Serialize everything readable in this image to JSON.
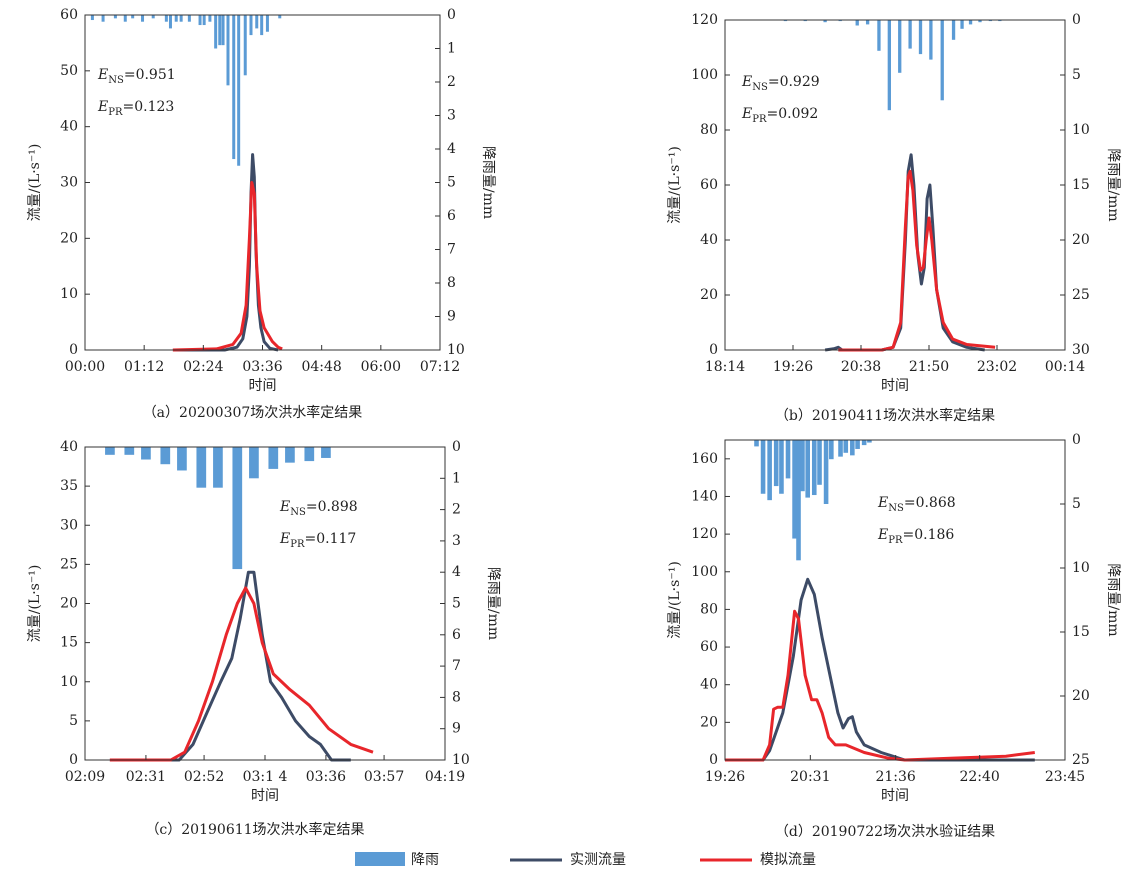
{
  "chart_data": [
    {
      "type": "bar-line",
      "caption": "（a）20200307场次洪水率定结果",
      "x_label": "时间",
      "y_label": "流量/(L·s⁻¹)",
      "y2_label": "降雨量/mm",
      "xlim": [
        0,
        432
      ],
      "xticks": [
        {
          "value": 0,
          "label": "00:00"
        },
        {
          "value": 72,
          "label": "01:12"
        },
        {
          "value": 144,
          "label": "02:24"
        },
        {
          "value": 216,
          "label": "03:36"
        },
        {
          "value": 288,
          "label": "04:48"
        },
        {
          "value": 360,
          "label": "06:00"
        },
        {
          "value": 432,
          "label": "07:12"
        }
      ],
      "ylim": [
        0,
        60
      ],
      "yticks": [
        0,
        10,
        20,
        30,
        40,
        50,
        60
      ],
      "y2lim": [
        0,
        10
      ],
      "y2ticks": [
        0,
        1,
        2,
        3,
        4,
        5,
        6,
        7,
        8,
        9,
        10
      ],
      "y2_inverted": true,
      "annotations": [
        {
          "symbol": "E",
          "sub": "NS",
          "text": "=0.951"
        },
        {
          "symbol": "E",
          "sub": "PR",
          "text": "=0.123"
        }
      ],
      "series": [
        {
          "name": "降雨",
          "color": "#5b9bd5",
          "type": "bar",
          "axis": "y2",
          "x": [
            9,
            22,
            37,
            49,
            58,
            70,
            83,
            99,
            104,
            111,
            117,
            127,
            140,
            145,
            152,
            159,
            164,
            168,
            174,
            181,
            187,
            195,
            202,
            209,
            215,
            222,
            237
          ],
          "values": [
            0.15,
            0.2,
            0.1,
            0.2,
            0.1,
            0.2,
            0.1,
            0.2,
            0.4,
            0.2,
            0.2,
            0.2,
            0.3,
            0.3,
            0.2,
            1.0,
            0.9,
            0.9,
            2.1,
            4.3,
            4.5,
            1.8,
            0.6,
            0.4,
            0.6,
            0.5,
            0.1
          ]
        },
        {
          "name": "实测流量",
          "color": "#3d4b66",
          "type": "line",
          "x": [
            107,
            170,
            185,
            192,
            197,
            200,
            202,
            204,
            206,
            208,
            211,
            214,
            218,
            225,
            235
          ],
          "values": [
            0,
            0,
            0.5,
            2,
            6,
            15,
            28,
            35,
            31,
            18,
            8,
            4,
            1.5,
            0.3,
            0
          ]
        },
        {
          "name": "模拟流量",
          "color": "#e8262b",
          "type": "line",
          "x": [
            107,
            160,
            180,
            190,
            196,
            200,
            203,
            206,
            209,
            213,
            218,
            222,
            228,
            235,
            240
          ],
          "values": [
            0,
            0.2,
            1,
            3,
            8,
            20,
            30,
            28,
            15,
            7,
            4,
            3,
            1.5,
            0.5,
            0.2
          ]
        }
      ]
    },
    {
      "type": "bar-line",
      "caption": "（b）20190411场次洪水率定结果",
      "x_label": "时间",
      "y_label": "流量/(L·s⁻¹)",
      "y2_label": "降雨量/mm",
      "xlim": [
        1094,
        1454
      ],
      "xticks": [
        {
          "value": 1094,
          "label": "18:14"
        },
        {
          "value": 1166,
          "label": "19:26"
        },
        {
          "value": 1238,
          "label": "20:38"
        },
        {
          "value": 1310,
          "label": "21:50"
        },
        {
          "value": 1382,
          "label": "23:02"
        },
        {
          "value": 1454,
          "label": "00:14"
        }
      ],
      "ylim": [
        0,
        120
      ],
      "yticks": [
        0,
        20,
        40,
        60,
        80,
        100,
        120
      ],
      "y2lim": [
        0,
        30
      ],
      "y2ticks": [
        0,
        5,
        10,
        15,
        20,
        25,
        30
      ],
      "y2_inverted": true,
      "annotations": [
        {
          "symbol": "E",
          "sub": "NS",
          "text": "=0.929"
        },
        {
          "symbol": "E",
          "sub": "PR",
          "text": "=0.092"
        }
      ],
      "series": [
        {
          "color": "#5b9bd5",
          "type": "bar",
          "axis": "y2",
          "x": [
            1158,
            1179,
            1200,
            1216,
            1234,
            1245,
            1257,
            1268,
            1279,
            1290,
            1301,
            1312,
            1324,
            1336,
            1345,
            1354,
            1364,
            1375,
            1385
          ],
          "values": [
            0.1,
            0.1,
            0.2,
            0.1,
            0.5,
            0.4,
            2.8,
            8.2,
            4.8,
            2.6,
            3.1,
            3.6,
            7.3,
            1.8,
            0.8,
            0.4,
            0.2,
            0.1,
            0.1
          ]
        },
        {
          "color": "#3d4b66",
          "type": "line",
          "x": [
            1200,
            1210,
            1214,
            1218,
            1260,
            1272,
            1280,
            1285,
            1288,
            1291,
            1294,
            1298,
            1302,
            1305,
            1308,
            1311,
            1314,
            1318,
            1325,
            1335,
            1350,
            1369
          ],
          "values": [
            0,
            0.5,
            1,
            0,
            0,
            1,
            8,
            40,
            65,
            71,
            60,
            35,
            24,
            30,
            55,
            60,
            45,
            22,
            8,
            3,
            1,
            0
          ]
        },
        {
          "color": "#e8262b",
          "type": "line",
          "x": [
            1214,
            1260,
            1272,
            1280,
            1285,
            1288,
            1290,
            1293,
            1297,
            1301,
            1304,
            1307,
            1310,
            1313,
            1318,
            1325,
            1335,
            1350,
            1380
          ],
          "values": [
            0,
            0,
            1,
            10,
            45,
            63,
            65,
            58,
            38,
            29,
            30,
            40,
            48,
            40,
            22,
            10,
            4,
            2,
            1
          ]
        }
      ]
    },
    {
      "type": "bar-line",
      "caption": "（c）20190611场次洪水率定结果",
      "x_label": "时间",
      "y_label": "流量/(L·s⁻¹)",
      "y2_label": "降雨量/mm",
      "xlim": [
        129,
        259
      ],
      "xticks": [
        {
          "value": 129,
          "label": "02:09"
        },
        {
          "value": 151,
          "label": "02:31"
        },
        {
          "value": 172,
          "label": "02:52"
        },
        {
          "value": 194,
          "label": "03:1 4"
        },
        {
          "value": 216,
          "label": "03:36"
        },
        {
          "value": 237,
          "label": "03:57"
        },
        {
          "value": 259,
          "label": "04:19"
        }
      ],
      "ylim": [
        0,
        40
      ],
      "yticks": [
        0,
        5,
        10,
        15,
        20,
        25,
        30,
        35,
        40
      ],
      "y2lim": [
        0,
        10
      ],
      "y2ticks": [
        0,
        1,
        2,
        3,
        4,
        5,
        6,
        7,
        8,
        9,
        10
      ],
      "y2_inverted": true,
      "annotations": [
        {
          "symbol": "E",
          "sub": "NS",
          "text": "=0.898"
        },
        {
          "symbol": "E",
          "sub": "PR",
          "text": "=0.117"
        }
      ],
      "series": [
        {
          "color": "#5b9bd5",
          "type": "bar",
          "axis": "y2",
          "x": [
            138,
            145,
            151,
            158,
            164,
            171,
            177,
            184,
            190,
            197,
            203,
            210,
            216
          ],
          "values": [
            0.25,
            0.25,
            0.4,
            0.55,
            0.75,
            1.3,
            1.3,
            3.9,
            1.0,
            0.7,
            0.5,
            0.45,
            0.35
          ]
        },
        {
          "color": "#3d4b66",
          "type": "line",
          "x": [
            138,
            163,
            168,
            173,
            178,
            182,
            185,
            188,
            190,
            193,
            196,
            200,
            205,
            210,
            214,
            218,
            225
          ],
          "values": [
            0,
            0,
            2,
            6,
            10,
            13,
            18,
            24,
            24,
            16,
            10,
            8,
            5,
            3,
            2,
            0,
            0
          ]
        },
        {
          "color": "#e8262b",
          "type": "line",
          "x": [
            138,
            160,
            165,
            170,
            175,
            180,
            184,
            187,
            190,
            193,
            197,
            203,
            210,
            217,
            225,
            233
          ],
          "values": [
            0,
            0,
            1,
            5,
            10,
            16,
            20,
            22,
            20,
            15,
            11,
            9,
            7,
            4,
            2,
            1
          ]
        }
      ]
    },
    {
      "type": "bar-line",
      "caption": "（d）20190722场次洪水验证结果",
      "x_label": "时间",
      "y_label": "流量/(L·s⁻¹)",
      "y2_label": "降雨量/mm",
      "xlim": [
        1166,
        1425
      ],
      "xticks": [
        {
          "value": 1166,
          "label": "19:26"
        },
        {
          "value": 1231,
          "label": "20:31"
        },
        {
          "value": 1296,
          "label": "21:36"
        },
        {
          "value": 1360,
          "label": "22:40"
        },
        {
          "value": 1425,
          "label": "23:45"
        }
      ],
      "ylim": [
        0,
        170
      ],
      "yticks": [
        0,
        20,
        40,
        60,
        80,
        100,
        120,
        140,
        160
      ],
      "y2lim": [
        0,
        25
      ],
      "y2ticks": [
        0,
        5,
        10,
        15,
        20,
        25
      ],
      "y2_inverted": true,
      "annotations": [
        {
          "symbol": "E",
          "sub": "NS",
          "text": "=0.868"
        },
        {
          "symbol": "E",
          "sub": "PR",
          "text": "=0.186"
        }
      ],
      "series": [
        {
          "color": "#5b9bd5",
          "type": "bar",
          "axis": "y2",
          "x": [
            1190,
            1195,
            1200,
            1205,
            1209,
            1214,
            1219,
            1222,
            1225,
            1229,
            1234,
            1238,
            1243,
            1247,
            1254,
            1258,
            1263,
            1267,
            1272,
            1276
          ],
          "values": [
            0.5,
            4.2,
            4.7,
            3.6,
            4.2,
            3.0,
            7.7,
            9.4,
            4.0,
            4.5,
            4.3,
            3.5,
            5.0,
            1.5,
            1.3,
            1.0,
            1.2,
            0.7,
            0.4,
            0.2
          ]
        },
        {
          "color": "#3d4b66",
          "type": "line",
          "x": [
            1166,
            1195,
            1200,
            1210,
            1218,
            1224,
            1229,
            1234,
            1240,
            1246,
            1252,
            1256,
            1260,
            1263,
            1266,
            1272,
            1285,
            1303,
            1402
          ],
          "values": [
            0,
            0,
            5,
            25,
            55,
            85,
            96,
            88,
            65,
            45,
            25,
            17,
            22,
            23,
            15,
            8,
            4,
            0,
            0
          ]
        },
        {
          "color": "#e8262b",
          "type": "line",
          "x": [
            1166,
            1195,
            1200,
            1203,
            1206,
            1210,
            1214,
            1219,
            1222,
            1227,
            1232,
            1236,
            1240,
            1245,
            1250,
            1258,
            1272,
            1290,
            1303,
            1340,
            1380,
            1402
          ],
          "values": [
            0,
            0,
            8,
            27,
            28,
            28,
            45,
            79,
            75,
            45,
            32,
            32,
            25,
            12,
            8,
            8,
            4,
            1,
            0,
            1,
            2,
            4
          ]
        }
      ]
    }
  ]
}
